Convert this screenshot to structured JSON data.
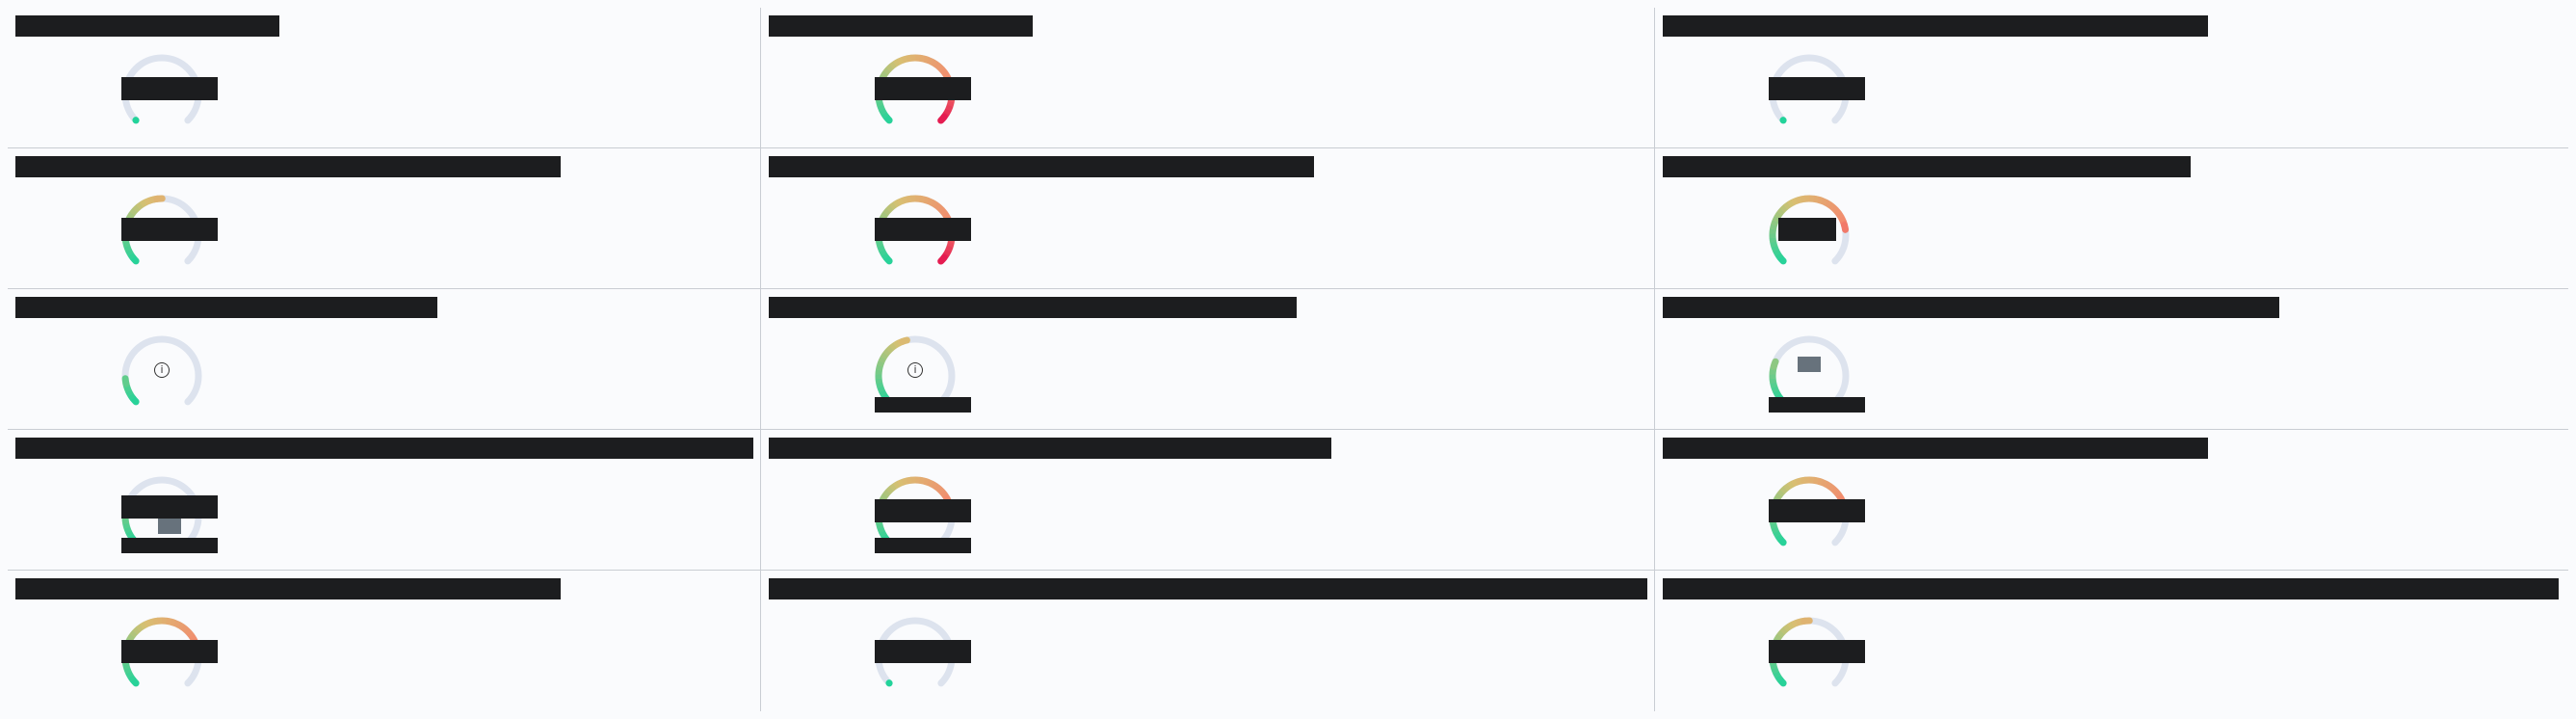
{
  "colors": {
    "track": "#dde3ee",
    "low": "#22d39a",
    "mid": "#d8c072",
    "high": "#f38a6e",
    "max": "#e4164f",
    "redaction": "#1c1d1f",
    "marker": "#67727c"
  },
  "gauges": [
    {
      "id": "r1c1",
      "level": 0.0,
      "info_icon": "",
      "marker": false
    },
    {
      "id": "r1c2",
      "level": 1.0,
      "info_icon": "",
      "marker": false
    },
    {
      "id": "r1c3",
      "level": 0.0,
      "info_icon": "",
      "marker": false
    },
    {
      "id": "r2c1",
      "level": 0.5,
      "info_icon": "",
      "marker": false
    },
    {
      "id": "r2c2",
      "level": 1.0,
      "info_icon": "",
      "marker": false
    },
    {
      "id": "r2c3",
      "level": 0.8,
      "info_icon": "",
      "marker": false
    },
    {
      "id": "r3c1",
      "level": 0.15,
      "info_icon": "i",
      "marker": false
    },
    {
      "id": "r3c2",
      "level": 0.45,
      "info_icon": "i",
      "marker": false
    },
    {
      "id": "r3c3",
      "level": 0.25,
      "info_icon": "",
      "marker": true
    },
    {
      "id": "r4c1",
      "level": 0.2,
      "info_icon": "",
      "marker": true
    },
    {
      "id": "r4c2",
      "level": 0.75,
      "info_icon": "",
      "marker": false
    },
    {
      "id": "r4c3",
      "level": 0.75,
      "info_icon": "",
      "marker": false
    },
    {
      "id": "r5c1",
      "level": 0.8,
      "info_icon": "",
      "marker": false
    },
    {
      "id": "r5c2",
      "level": 0.0,
      "info_icon": "",
      "marker": false
    },
    {
      "id": "r5c3",
      "level": 0.5,
      "info_icon": "",
      "marker": false
    }
  ]
}
